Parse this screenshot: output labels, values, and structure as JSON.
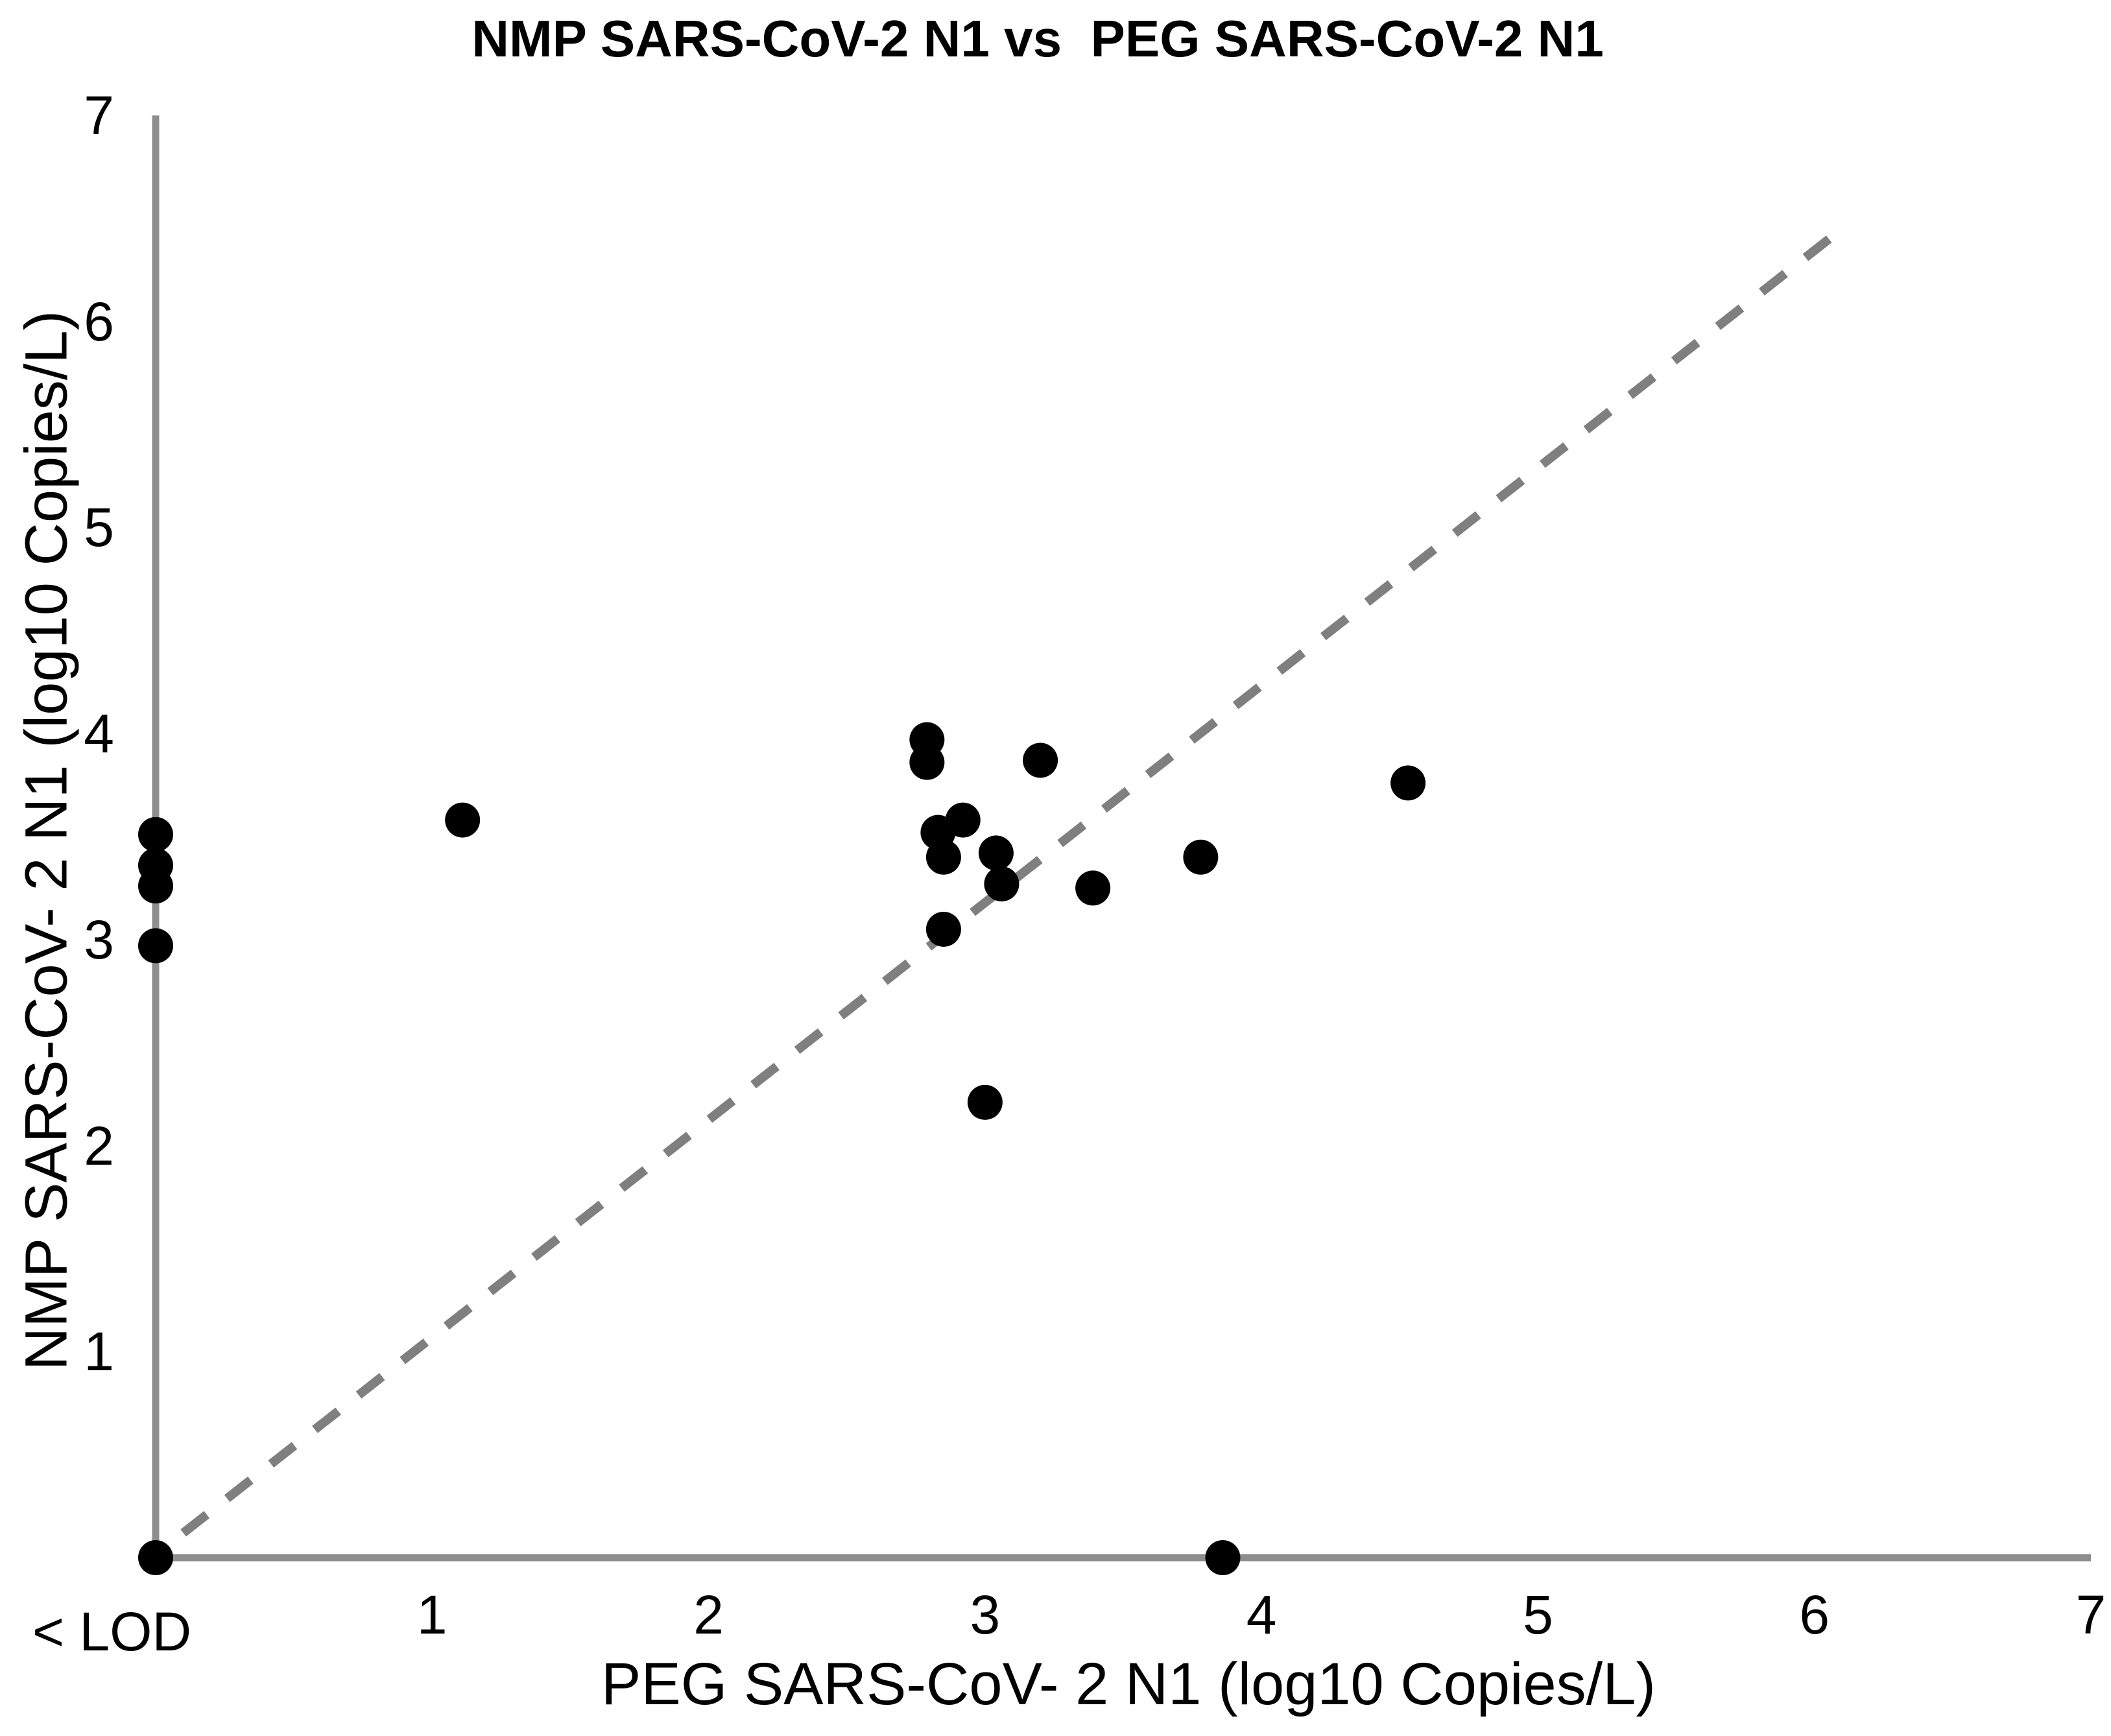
{
  "title": "NMP SARS-CoV-2 N1 vs  PEG SARS-CoV-2 N1",
  "chart_data": {
    "type": "scatter",
    "title": "NMP SARS-CoV-2 N1 vs  PEG SARS-CoV-2 N1",
    "xlabel": "PEG SARS-CoV- 2 N1 (log10 Copies/L)",
    "ylabel": "NMP SARS-CoV- 2 N1 (log10 Copies/L)",
    "xlim": [
      0,
      7
    ],
    "ylim": [
      0,
      7
    ],
    "x_ticks": [
      "1",
      "2",
      "3",
      "4",
      "5",
      "6",
      "7"
    ],
    "y_ticks": [
      "1",
      "2",
      "3",
      "4",
      "5",
      "6",
      "7"
    ],
    "x_lod_label": "< LOD",
    "grid": false,
    "legend": false,
    "marker_color": "#000000",
    "axis_color": "#8e8e8e",
    "identity_line": {
      "style": "dashed",
      "color": "#7f7f7f",
      "from": {
        "x": 0.1,
        "y": 0.12
      },
      "to": {
        "x": 6.1,
        "y": 6.45
      }
    },
    "points": [
      {
        "x": 0,
        "y": 0,
        "note": "< LOD both"
      },
      {
        "x": 0,
        "y": 2.97,
        "note": "< LOD x"
      },
      {
        "x": 0,
        "y": 3.26,
        "note": "< LOD x"
      },
      {
        "x": 0,
        "y": 3.36,
        "note": "< LOD x"
      },
      {
        "x": 0,
        "y": 3.51,
        "note": "< LOD x"
      },
      {
        "x": 1.11,
        "y": 3.58
      },
      {
        "x": 2.79,
        "y": 3.97
      },
      {
        "x": 2.79,
        "y": 3.86
      },
      {
        "x": 2.83,
        "y": 3.52
      },
      {
        "x": 2.92,
        "y": 3.58
      },
      {
        "x": 2.85,
        "y": 3.4
      },
      {
        "x": 3.04,
        "y": 3.42
      },
      {
        "x": 3.06,
        "y": 3.27
      },
      {
        "x": 2.85,
        "y": 3.05
      },
      {
        "x": 3.2,
        "y": 3.87
      },
      {
        "x": 3.39,
        "y": 3.25
      },
      {
        "x": 3.78,
        "y": 3.4
      },
      {
        "x": 4.53,
        "y": 3.76
      },
      {
        "x": 3.0,
        "y": 2.21
      },
      {
        "x": 3.86,
        "y": 0,
        "note": "< LOD y"
      }
    ]
  }
}
